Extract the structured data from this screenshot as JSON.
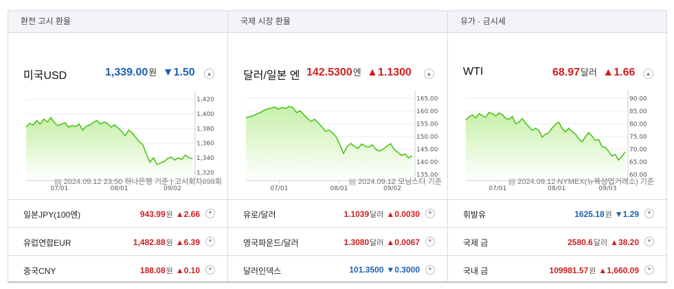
{
  "columns": [
    {
      "header": "환전 고시 환율",
      "main": {
        "name": "미국USD",
        "value": "1,339.00",
        "unit": "원",
        "dir": "down",
        "arrow": "▼",
        "change": "1.50",
        "source": "2024.09.12 23:50 하나은행 기준 | 고시회차698회"
      },
      "chart_data": {
        "type": "line",
        "x_ticks": [
          "07/01",
          "08/01",
          "09/02"
        ],
        "y_ticks": [
          1420,
          1400,
          1380,
          1360,
          1340,
          1320
        ],
        "ylim": [
          1310,
          1428
        ],
        "values": [
          1382,
          1387,
          1385,
          1391,
          1386,
          1393,
          1389,
          1395,
          1388,
          1384,
          1386,
          1388,
          1382,
          1384,
          1383,
          1386,
          1378,
          1383,
          1385,
          1388,
          1391,
          1386,
          1389,
          1387,
          1382,
          1385,
          1381,
          1376,
          1370,
          1378,
          1374,
          1368,
          1362,
          1358,
          1345,
          1334,
          1340,
          1331,
          1333,
          1335,
          1339,
          1341,
          1337,
          1340,
          1338,
          1344,
          1340,
          1339
        ]
      },
      "rows": [
        {
          "name": "일본JPY(100엔)",
          "value": "943.99",
          "unit": "원",
          "dir": "up",
          "arrow": "▲",
          "change": "2.66"
        },
        {
          "name": "유럽연합EUR",
          "value": "1,482.88",
          "unit": "원",
          "dir": "up",
          "arrow": "▲",
          "change": "6.39"
        },
        {
          "name": "중국CNY",
          "value": "188.08",
          "unit": "원",
          "dir": "up",
          "arrow": "▲",
          "change": "0.10"
        }
      ]
    },
    {
      "header": "국제 시장 환율",
      "main": {
        "name": "달러/일본 엔",
        "value": "142.5300",
        "unit": "엔",
        "dir": "up",
        "arrow": "▲",
        "change": "1.1300",
        "source": "2024.09.12 모닝스타 기준"
      },
      "chart_data": {
        "type": "line",
        "x_ticks": [
          "07/01",
          "08/01",
          "09/02"
        ],
        "y_ticks": [
          165,
          160,
          155,
          150,
          145,
          140,
          135
        ],
        "ylim": [
          133,
          167
        ],
        "values": [
          157.5,
          157.8,
          158.2,
          158.9,
          159.5,
          160.4,
          160.9,
          161.2,
          161.6,
          160.8,
          161.5,
          161.0,
          161.9,
          161.4,
          159.4,
          160.2,
          158.6,
          157.2,
          156.0,
          156.8,
          155.4,
          153.8,
          152.1,
          152.6,
          151.4,
          149.8,
          146.7,
          143.4,
          146.1,
          147.3,
          146.2,
          145.3,
          147.1,
          146.2,
          145.9,
          146.8,
          144.9,
          144.3,
          145.1,
          146.3,
          147.2,
          145.0,
          143.9,
          142.6,
          143.2,
          141.6,
          142.5
        ]
      },
      "rows": [
        {
          "name": "유로/달러",
          "value": "1.1039",
          "unit": "달러",
          "dir": "up",
          "arrow": "▲",
          "change": "0.0030"
        },
        {
          "name": "영국파운드/달러",
          "value": "1.3080",
          "unit": "달러",
          "dir": "up",
          "arrow": "▲",
          "change": "0.0067"
        },
        {
          "name": "달러인덱스",
          "value": "101.3500",
          "unit": "",
          "dir": "down",
          "arrow": "▼",
          "change": "0.3000"
        }
      ]
    },
    {
      "header": "유가 · 금시세",
      "main": {
        "name": "WTI",
        "value": "68.97",
        "unit": "달러",
        "dir": "up",
        "arrow": "▲",
        "change": "1.66",
        "source": "2024.09.12 NYMEX(뉴욕상업거래소) 기준"
      },
      "chart_data": {
        "type": "line",
        "x_ticks": [
          "07/01",
          "08/01",
          "09/03"
        ],
        "y_ticks": [
          90,
          85,
          80,
          75,
          70,
          65,
          60
        ],
        "ylim": [
          58,
          92
        ],
        "values": [
          81.5,
          82.8,
          83.5,
          82.4,
          84.1,
          83.2,
          82.6,
          84.5,
          84.0,
          83.1,
          84.3,
          83.6,
          82.2,
          81.8,
          82.9,
          80.1,
          80.7,
          82.1,
          80.3,
          78.9,
          77.5,
          78.3,
          77.4,
          74.8,
          76.0,
          76.5,
          78.4,
          79.8,
          80.7,
          78.2,
          76.8,
          78.3,
          77.0,
          76.0,
          74.1,
          73.0,
          74.9,
          76.6,
          75.2,
          73.5,
          73.8,
          71.1,
          70.8,
          69.2,
          67.4,
          68.0,
          65.8,
          67.3,
          68.97
        ]
      },
      "rows": [
        {
          "name": "휘발유",
          "value": "1625.18",
          "unit": "원",
          "dir": "down",
          "arrow": "▼",
          "change": "1.29"
        },
        {
          "name": "국제 금",
          "value": "2580.6",
          "unit": "달러",
          "dir": "up",
          "arrow": "▲",
          "change": "38.20"
        },
        {
          "name": "국내 금",
          "value": "109981.57",
          "unit": "원",
          "dir": "up",
          "arrow": "▲",
          "change": "1,660.09"
        }
      ]
    }
  ],
  "colors": {
    "up": "#d01c1c",
    "down": "#1a5fb4",
    "line": "#4cc21a",
    "fill_top": "#c6f0a8",
    "fill_bottom": "#ffffff"
  }
}
